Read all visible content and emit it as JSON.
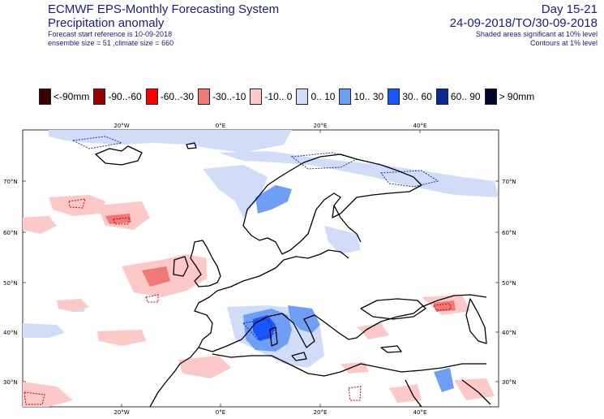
{
  "header": {
    "title": "ECMWF EPS-Monthly Forecasting System",
    "subtitle": "Precipitation anomaly",
    "forecast_start": "Forecast start reference is 10-09-2018",
    "ensemble": "ensemble size = 51  ,climate size = 660",
    "day_range": "Day 15-21",
    "date_range": "24-09-2018/TO/30-09-2018",
    "shaded_note": "Shaded areas significant at 10% level",
    "contour_note": "Contours at 1% level"
  },
  "legend": [
    {
      "label": "<-90mm",
      "color": "#3a0000"
    },
    {
      "label": "-90..-60",
      "color": "#990000"
    },
    {
      "label": "-60..-30",
      "color": "#ff0000"
    },
    {
      "label": "-30..-10",
      "color": "#f07878"
    },
    {
      "label": "-10..  0",
      "color": "#fcc8c8"
    },
    {
      "label": "0..  10",
      "color": "#d0dcf8"
    },
    {
      "label": "10..  30",
      "color": "#6f9ef5"
    },
    {
      "label": "30..  60",
      "color": "#1a56ff"
    },
    {
      "label": "60..  90",
      "color": "#0a2a99"
    },
    {
      "label": ">  90mm",
      "color": "#000830"
    }
  ],
  "map": {
    "lon_labels": [
      "20°W",
      "0°E",
      "20°E",
      "40°E"
    ],
    "lat_labels": [
      "70°N",
      "60°N",
      "50°N",
      "40°N",
      "30°N"
    ],
    "coast_color": "#000000"
  }
}
